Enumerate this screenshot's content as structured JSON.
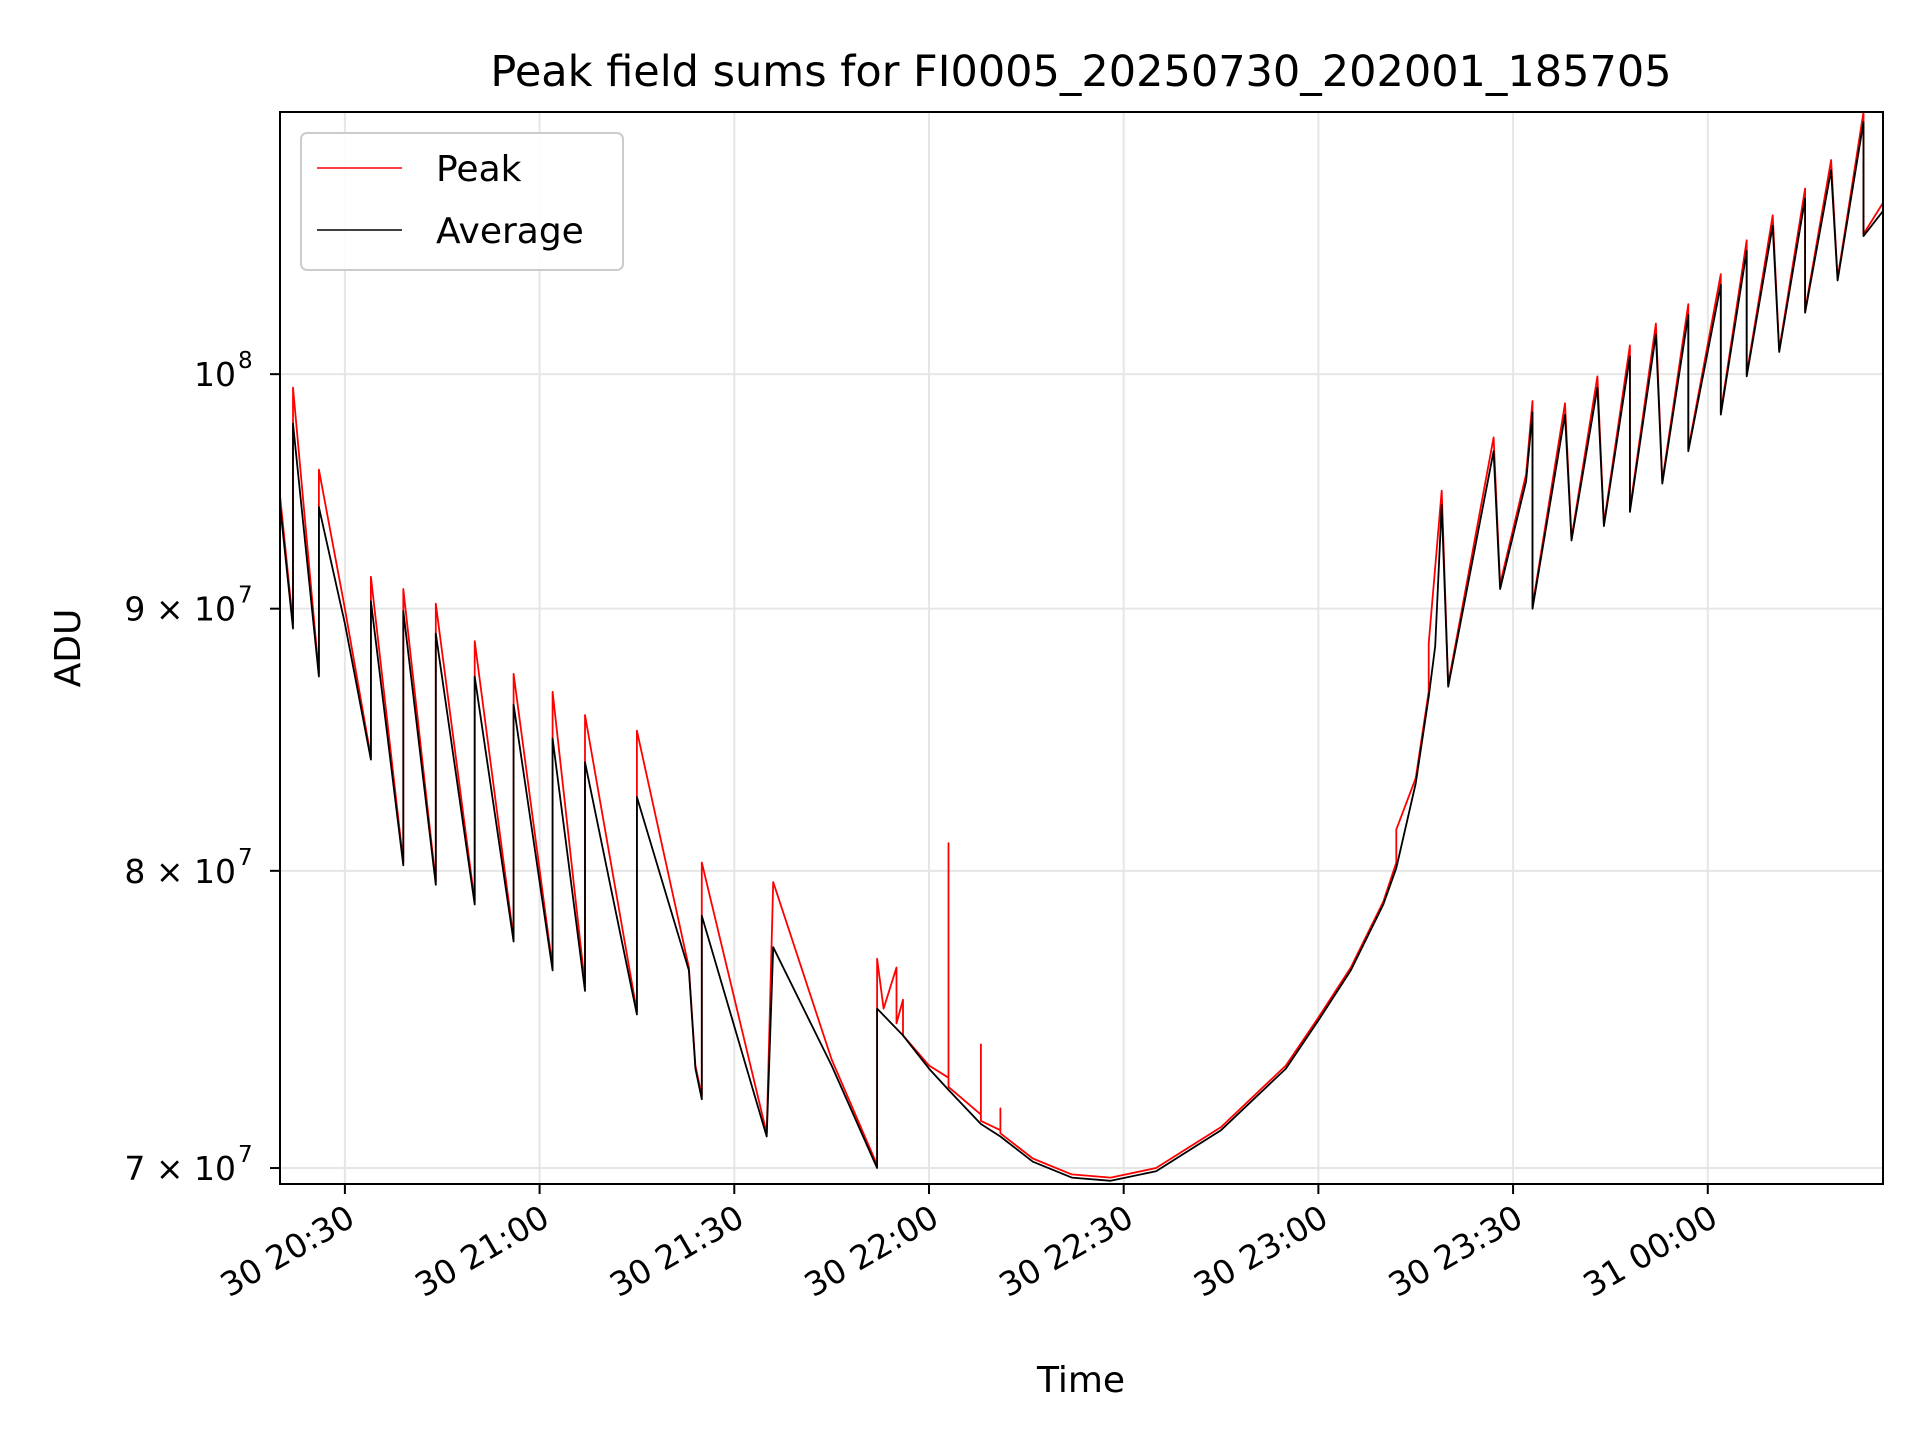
{
  "chart_data": {
    "type": "line",
    "title": "Peak field sums for FI0005_20250730_202001_185705",
    "xlabel": "Time",
    "ylabel": "ADU",
    "y_scale": "log",
    "ylim": [
      69500000,
      112500000
    ],
    "xlim": [
      "2025-07-30 20:20",
      "2025-07-31 00:27"
    ],
    "grid": true,
    "legend_position": "upper-left",
    "x_ticks": [
      {
        "t": "2025-07-30 20:30",
        "label": "30 20:30"
      },
      {
        "t": "2025-07-30 21:00",
        "label": "30 21:00"
      },
      {
        "t": "2025-07-30 21:30",
        "label": "30 21:30"
      },
      {
        "t": "2025-07-30 22:00",
        "label": "30 22:00"
      },
      {
        "t": "2025-07-30 22:30",
        "label": "30 22:30"
      },
      {
        "t": "2025-07-30 23:00",
        "label": "30 23:00"
      },
      {
        "t": "2025-07-30 23:30",
        "label": "30 23:30"
      },
      {
        "t": "2025-07-31 00:00",
        "label": "31 00:00"
      }
    ],
    "y_ticks": [
      {
        "value": 70000000,
        "label": "7 × 10",
        "exp": "7"
      },
      {
        "value": 80000000,
        "label": "8 × 10",
        "exp": "7"
      },
      {
        "value": 90000000,
        "label": "9 × 10",
        "exp": "7"
      },
      {
        "value": 100000000,
        "label": "10",
        "exp": "8"
      }
    ],
    "series": [
      {
        "name": "Peak",
        "color": "#ff0000",
        "points": [
          [
            "2025-07-30 20:20",
            94700000
          ],
          [
            "2025-07-30 20:22",
            89400000
          ],
          [
            "2025-07-30 20:22",
            99400000
          ],
          [
            "2025-07-30 20:26",
            87400000
          ],
          [
            "2025-07-30 20:26",
            95800000
          ],
          [
            "2025-07-30 20:30",
            90000000
          ],
          [
            "2025-07-30 20:34",
            84200000
          ],
          [
            "2025-07-30 20:34",
            91300000
          ],
          [
            "2025-07-30 20:39",
            80300000
          ],
          [
            "2025-07-30 20:39",
            90800000
          ],
          [
            "2025-07-30 20:44",
            79600000
          ],
          [
            "2025-07-30 20:44",
            90200000
          ],
          [
            "2025-07-30 20:50",
            78900000
          ],
          [
            "2025-07-30 20:50",
            88700000
          ],
          [
            "2025-07-30 20:56",
            77600000
          ],
          [
            "2025-07-30 20:56",
            87400000
          ],
          [
            "2025-07-30 21:02",
            76600000
          ],
          [
            "2025-07-30 21:02",
            86700000
          ],
          [
            "2025-07-30 21:07",
            76000000
          ],
          [
            "2025-07-30 21:07",
            85800000
          ],
          [
            "2025-07-30 21:15",
            75100000
          ],
          [
            "2025-07-30 21:15",
            85200000
          ],
          [
            "2025-07-30 21:23",
            76600000
          ],
          [
            "2025-07-30 21:24",
            73300000
          ],
          [
            "2025-07-30 21:25",
            72300000
          ],
          [
            "2025-07-30 21:25",
            80300000
          ],
          [
            "2025-07-30 21:35",
            71100000
          ],
          [
            "2025-07-30 21:36",
            79600000
          ],
          [
            "2025-07-30 21:45",
            73500000
          ],
          [
            "2025-07-30 21:52",
            70100000
          ],
          [
            "2025-07-30 21:52",
            76900000
          ],
          [
            "2025-07-30 21:53",
            75200000
          ],
          [
            "2025-07-30 21:55",
            76600000
          ],
          [
            "2025-07-30 21:55",
            74700000
          ],
          [
            "2025-07-30 21:56",
            75500000
          ],
          [
            "2025-07-30 21:56",
            74300000
          ],
          [
            "2025-07-30 22:00",
            73300000
          ],
          [
            "2025-07-30 22:03",
            72900000
          ],
          [
            "2025-07-30 22:03",
            81000000
          ],
          [
            "2025-07-30 22:03",
            72600000
          ],
          [
            "2025-07-30 22:08",
            71700000
          ],
          [
            "2025-07-30 22:08",
            74000000
          ],
          [
            "2025-07-30 22:08",
            71500000
          ],
          [
            "2025-07-30 22:11",
            71200000
          ],
          [
            "2025-07-30 22:11",
            71900000
          ],
          [
            "2025-07-30 22:11",
            71100000
          ],
          [
            "2025-07-30 22:16",
            70300000
          ],
          [
            "2025-07-30 22:22",
            69800000
          ],
          [
            "2025-07-30 22:28",
            69700000
          ],
          [
            "2025-07-30 22:35",
            70000000
          ],
          [
            "2025-07-30 22:45",
            71300000
          ],
          [
            "2025-07-30 22:55",
            73300000
          ],
          [
            "2025-07-30 23:00",
            74900000
          ],
          [
            "2025-07-30 23:05",
            76600000
          ],
          [
            "2025-07-30 23:10",
            78900000
          ],
          [
            "2025-07-30 23:12",
            80300000
          ],
          [
            "2025-07-30 23:12",
            81500000
          ],
          [
            "2025-07-30 23:15",
            83400000
          ],
          [
            "2025-07-30 23:17",
            86700000
          ],
          [
            "2025-07-30 23:17",
            88600000
          ],
          [
            "2025-07-30 23:19",
            94900000
          ],
          [
            "2025-07-30 23:20",
            87000000
          ],
          [
            "2025-07-30 23:27",
            97200000
          ],
          [
            "2025-07-30 23:28",
            91000000
          ],
          [
            "2025-07-30 23:32",
            95600000
          ],
          [
            "2025-07-30 23:33",
            98800000
          ],
          [
            "2025-07-30 23:33",
            90100000
          ],
          [
            "2025-07-30 23:38",
            98700000
          ],
          [
            "2025-07-30 23:39",
            92900000
          ],
          [
            "2025-07-30 23:43",
            99900000
          ],
          [
            "2025-07-30 23:44",
            93500000
          ],
          [
            "2025-07-30 23:48",
            101300000
          ],
          [
            "2025-07-30 23:48",
            94100000
          ],
          [
            "2025-07-30 23:52",
            102300000
          ],
          [
            "2025-07-30 23:53",
            95300000
          ],
          [
            "2025-07-30 23:57",
            103200000
          ],
          [
            "2025-07-30 23:57",
            96700000
          ],
          [
            "2025-07-31 00:02",
            104600000
          ],
          [
            "2025-07-31 00:02",
            98300000
          ],
          [
            "2025-07-31 00:06",
            106200000
          ],
          [
            "2025-07-31 00:06",
            100000000
          ],
          [
            "2025-07-31 00:10",
            107400000
          ],
          [
            "2025-07-31 00:11",
            101100000
          ],
          [
            "2025-07-31 00:15",
            108700000
          ],
          [
            "2025-07-31 00:15",
            102900000
          ],
          [
            "2025-07-31 00:19",
            110100000
          ],
          [
            "2025-07-31 00:20",
            104400000
          ],
          [
            "2025-07-31 00:24",
            112500000
          ],
          [
            "2025-07-31 00:24",
            106500000
          ],
          [
            "2025-07-31 00:27",
            108000000
          ]
        ]
      },
      {
        "name": "Average",
        "color": "#000000",
        "points": [
          [
            "2025-07-30 20:20",
            94300000
          ],
          [
            "2025-07-30 20:22",
            89200000
          ],
          [
            "2025-07-30 20:22",
            97800000
          ],
          [
            "2025-07-30 20:26",
            87300000
          ],
          [
            "2025-07-30 20:26",
            94200000
          ],
          [
            "2025-07-30 20:30",
            89400000
          ],
          [
            "2025-07-30 20:34",
            84100000
          ],
          [
            "2025-07-30 20:34",
            90300000
          ],
          [
            "2025-07-30 20:39",
            80200000
          ],
          [
            "2025-07-30 20:39",
            89900000
          ],
          [
            "2025-07-30 20:44",
            79500000
          ],
          [
            "2025-07-30 20:44",
            89000000
          ],
          [
            "2025-07-30 20:50",
            78800000
          ],
          [
            "2025-07-30 20:50",
            87300000
          ],
          [
            "2025-07-30 20:56",
            77500000
          ],
          [
            "2025-07-30 20:56",
            86200000
          ],
          [
            "2025-07-30 21:02",
            76500000
          ],
          [
            "2025-07-30 21:02",
            84900000
          ],
          [
            "2025-07-30 21:07",
            75800000
          ],
          [
            "2025-07-30 21:07",
            84000000
          ],
          [
            "2025-07-30 21:15",
            75000000
          ],
          [
            "2025-07-30 21:15",
            82700000
          ],
          [
            "2025-07-30 21:23",
            76500000
          ],
          [
            "2025-07-30 21:24",
            73200000
          ],
          [
            "2025-07-30 21:25",
            72200000
          ],
          [
            "2025-07-30 21:25",
            78400000
          ],
          [
            "2025-07-30 21:35",
            71000000
          ],
          [
            "2025-07-30 21:36",
            77300000
          ],
          [
            "2025-07-30 21:45",
            73300000
          ],
          [
            "2025-07-30 21:52",
            70000000
          ],
          [
            "2025-07-30 21:52",
            75200000
          ],
          [
            "2025-07-30 21:56",
            74300000
          ],
          [
            "2025-07-30 22:00",
            73200000
          ],
          [
            "2025-07-30 22:03",
            72500000
          ],
          [
            "2025-07-30 22:08",
            71400000
          ],
          [
            "2025-07-30 22:11",
            71000000
          ],
          [
            "2025-07-30 22:16",
            70200000
          ],
          [
            "2025-07-30 22:22",
            69700000
          ],
          [
            "2025-07-30 22:28",
            69600000
          ],
          [
            "2025-07-30 22:35",
            69900000
          ],
          [
            "2025-07-30 22:45",
            71200000
          ],
          [
            "2025-07-30 22:55",
            73200000
          ],
          [
            "2025-07-30 23:00",
            74800000
          ],
          [
            "2025-07-30 23:05",
            76500000
          ],
          [
            "2025-07-30 23:10",
            78800000
          ],
          [
            "2025-07-30 23:12",
            80100000
          ],
          [
            "2025-07-30 23:15",
            83200000
          ],
          [
            "2025-07-30 23:17",
            86500000
          ],
          [
            "2025-07-30 23:18",
            88500000
          ],
          [
            "2025-07-30 23:19",
            94300000
          ],
          [
            "2025-07-30 23:20",
            86900000
          ],
          [
            "2025-07-30 23:27",
            96600000
          ],
          [
            "2025-07-30 23:28",
            90800000
          ],
          [
            "2025-07-30 23:32",
            95300000
          ],
          [
            "2025-07-30 23:33",
            98300000
          ],
          [
            "2025-07-30 23:33",
            90000000
          ],
          [
            "2025-07-30 23:38",
            98200000
          ],
          [
            "2025-07-30 23:39",
            92800000
          ],
          [
            "2025-07-30 23:43",
            99400000
          ],
          [
            "2025-07-30 23:44",
            93400000
          ],
          [
            "2025-07-30 23:48",
            100800000
          ],
          [
            "2025-07-30 23:48",
            94000000
          ],
          [
            "2025-07-30 23:52",
            101800000
          ],
          [
            "2025-07-30 23:53",
            95200000
          ],
          [
            "2025-07-30 23:57",
            102700000
          ],
          [
            "2025-07-30 23:57",
            96600000
          ],
          [
            "2025-07-31 00:02",
            104100000
          ],
          [
            "2025-07-31 00:02",
            98200000
          ],
          [
            "2025-07-31 00:06",
            105700000
          ],
          [
            "2025-07-31 00:06",
            99900000
          ],
          [
            "2025-07-31 00:10",
            106900000
          ],
          [
            "2025-07-31 00:11",
            101000000
          ],
          [
            "2025-07-31 00:15",
            108200000
          ],
          [
            "2025-07-31 00:15",
            102800000
          ],
          [
            "2025-07-31 00:19",
            109600000
          ],
          [
            "2025-07-31 00:20",
            104300000
          ],
          [
            "2025-07-31 00:24",
            112000000
          ],
          [
            "2025-07-31 00:24",
            106400000
          ],
          [
            "2025-07-31 00:27",
            107600000
          ]
        ]
      }
    ]
  }
}
